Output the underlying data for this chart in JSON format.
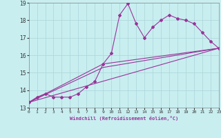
{
  "xlabel": "Windchill (Refroidissement éolien,°C)",
  "xlim": [
    0,
    23
  ],
  "ylim": [
    13,
    19
  ],
  "xticks": [
    0,
    1,
    2,
    3,
    4,
    5,
    6,
    7,
    8,
    9,
    10,
    11,
    12,
    13,
    14,
    15,
    16,
    17,
    18,
    19,
    20,
    21,
    22,
    23
  ],
  "yticks": [
    13,
    14,
    15,
    16,
    17,
    18,
    19
  ],
  "bg_color": "#c8eef0",
  "grid_color": "#b0d8dc",
  "line_color": "#993399",
  "line1_x": [
    0,
    1,
    2,
    3,
    4,
    5,
    6,
    7,
    8,
    9,
    10,
    11,
    12,
    13,
    14,
    15,
    16,
    17,
    18,
    19,
    20,
    21,
    22,
    23
  ],
  "line1_y": [
    13.3,
    13.6,
    13.8,
    13.6,
    13.6,
    13.6,
    13.8,
    14.2,
    14.5,
    15.5,
    16.1,
    18.3,
    18.95,
    17.8,
    17.0,
    17.6,
    18.0,
    18.3,
    18.1,
    18.0,
    17.8,
    17.3,
    16.8,
    16.4
  ],
  "line2_x": [
    0,
    23
  ],
  "line2_y": [
    13.3,
    16.4
  ],
  "line3_x": [
    0,
    9,
    23
  ],
  "line3_y": [
    13.3,
    15.5,
    16.4
  ],
  "line4_x": [
    0,
    9,
    23
  ],
  "line4_y": [
    13.3,
    15.3,
    16.4
  ]
}
